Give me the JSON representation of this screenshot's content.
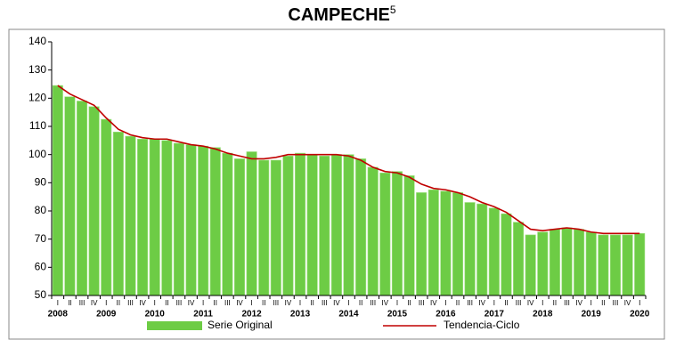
{
  "chart_data": {
    "type": "bar",
    "title": "CAMPECHE",
    "title_superscript": "5",
    "categories": [
      "I",
      "II",
      "III",
      "IV",
      "I",
      "II",
      "III",
      "IV",
      "I",
      "II",
      "III",
      "IV",
      "I",
      "II",
      "III",
      "IV",
      "I",
      "II",
      "III",
      "IV",
      "I",
      "II",
      "III",
      "IV",
      "I",
      "II",
      "III",
      "IV",
      "I",
      "II",
      "III",
      "IV",
      "I",
      "II",
      "III",
      "IV",
      "I",
      "II",
      "III",
      "IV",
      "I",
      "II",
      "III",
      "IV",
      "I",
      "II",
      "III",
      "IV",
      "I"
    ],
    "years": [
      2008,
      2009,
      2010,
      2011,
      2012,
      2013,
      2014,
      2015,
      2016,
      2017,
      2018,
      2019,
      2020
    ],
    "series": [
      {
        "name": "Serie Original",
        "type": "bar",
        "color": "#6dcc45",
        "values": [
          124.5,
          120.5,
          119,
          117,
          112.5,
          108,
          106.5,
          105.5,
          105.5,
          105,
          104,
          103.5,
          103,
          102.5,
          100.5,
          98.5,
          101,
          98,
          98,
          99.5,
          100.5,
          100,
          99.5,
          100,
          100,
          98.5,
          95.5,
          93.5,
          94,
          92.5,
          86.5,
          87.5,
          87,
          86.5,
          83,
          82.5,
          81,
          79,
          76,
          71.5,
          72.5,
          73.5,
          74,
          73.5,
          72.5,
          71.5,
          71.5,
          71.5,
          72
        ]
      },
      {
        "name": "Tendencia-Ciclo",
        "type": "line",
        "color": "#c00000",
        "values": [
          124.5,
          121.5,
          119.5,
          117.5,
          113,
          109,
          107,
          106,
          105.5,
          105.5,
          104.5,
          103.5,
          103,
          102,
          100.5,
          99.5,
          98.5,
          98.5,
          99,
          100,
          100,
          100,
          100,
          100,
          99.5,
          98,
          95.5,
          94,
          93.5,
          92,
          89.5,
          88,
          87.5,
          86.5,
          85,
          83,
          81.5,
          79.5,
          76.5,
          73.5,
          73,
          73.5,
          74,
          73.5,
          72.5,
          72,
          72,
          72,
          72
        ]
      }
    ],
    "ylim": [
      50,
      140
    ],
    "yticks": [
      50,
      60,
      70,
      80,
      90,
      100,
      110,
      120,
      130,
      140
    ]
  }
}
